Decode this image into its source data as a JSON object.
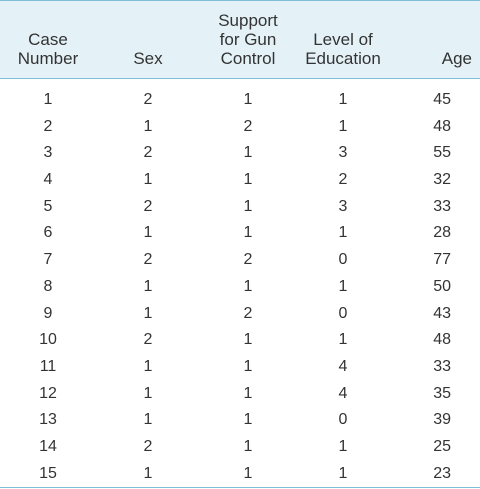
{
  "table": {
    "headers": {
      "case": "Case\nNumber",
      "sex": "Sex",
      "support": "Support\nfor Gun\nControl",
      "education": "Level of\nEducation",
      "age": "Age"
    },
    "rows": [
      {
        "case": "1",
        "sex": "2",
        "support": "1",
        "education": "1",
        "age": "45"
      },
      {
        "case": "2",
        "sex": "1",
        "support": "2",
        "education": "1",
        "age": "48"
      },
      {
        "case": "3",
        "sex": "2",
        "support": "1",
        "education": "3",
        "age": "55"
      },
      {
        "case": "4",
        "sex": "1",
        "support": "1",
        "education": "2",
        "age": "32"
      },
      {
        "case": "5",
        "sex": "2",
        "support": "1",
        "education": "3",
        "age": "33"
      },
      {
        "case": "6",
        "sex": "1",
        "support": "1",
        "education": "1",
        "age": "28"
      },
      {
        "case": "7",
        "sex": "2",
        "support": "2",
        "education": "0",
        "age": "77"
      },
      {
        "case": "8",
        "sex": "1",
        "support": "1",
        "education": "1",
        "age": "50"
      },
      {
        "case": "9",
        "sex": "1",
        "support": "2",
        "education": "0",
        "age": "43"
      },
      {
        "case": "10",
        "sex": "2",
        "support": "1",
        "education": "1",
        "age": "48"
      },
      {
        "case": "11",
        "sex": "1",
        "support": "1",
        "education": "4",
        "age": "33"
      },
      {
        "case": "12",
        "sex": "1",
        "support": "1",
        "education": "4",
        "age": "35"
      },
      {
        "case": "13",
        "sex": "1",
        "support": "1",
        "education": "0",
        "age": "39"
      },
      {
        "case": "14",
        "sex": "2",
        "support": "1",
        "education": "1",
        "age": "25"
      },
      {
        "case": "15",
        "sex": "1",
        "support": "1",
        "education": "1",
        "age": "23"
      }
    ]
  },
  "colors": {
    "header_background": "#e4f2f8",
    "rule": "#7fbfd8",
    "text": "#333333"
  }
}
